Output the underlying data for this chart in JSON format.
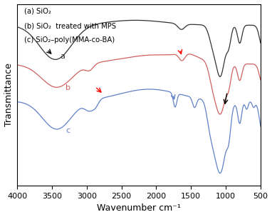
{
  "title_lines": [
    "(a) SiO₂",
    "(b) SiO₂  treated with MPS",
    "(c) SiO₂–poly(MMA-co-BA)"
  ],
  "xlabel": "Wavenumber cm⁻¹",
  "ylabel": "Transmittance",
  "xlim": [
    4000,
    500
  ],
  "colors": {
    "a": "#333333",
    "b": "#d06060",
    "c": "#6080c8"
  },
  "background": "#ffffff"
}
